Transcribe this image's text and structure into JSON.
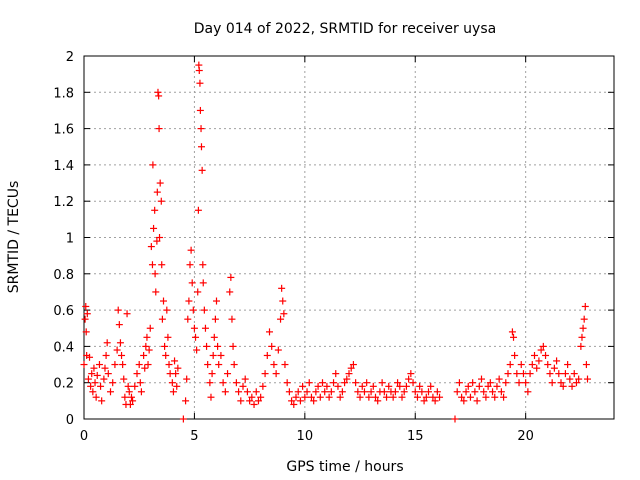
{
  "chart_data": {
    "type": "scatter",
    "title": "Day 014 of 2022, SRMTID for receiver uysa",
    "xlabel": "GPS time / hours",
    "ylabel": "SRMTID / TECUs",
    "xlim": [
      0,
      24
    ],
    "ylim": [
      0,
      2
    ],
    "xticks": [
      0,
      5,
      10,
      15,
      20
    ],
    "xtick_labels": [
      "0",
      "5",
      "10",
      "15",
      "20"
    ],
    "yticks": [
      0,
      0.2,
      0.4,
      0.6,
      0.8,
      1,
      1.2,
      1.4,
      1.6,
      1.8,
      2
    ],
    "ytick_labels": [
      "0",
      "0.2",
      "0.4",
      "0.6",
      "0.8",
      "1",
      "1.2",
      "1.4",
      "1.6",
      "1.8",
      "2"
    ],
    "grid": true,
    "marker": "+",
    "series": [
      {
        "name": "SRMTID",
        "color": "#ff0000",
        "points": [
          [
            0.0,
            0.3
          ],
          [
            0.05,
            0.55
          ],
          [
            0.08,
            0.62
          ],
          [
            0.1,
            0.48
          ],
          [
            0.12,
            0.35
          ],
          [
            0.15,
            0.58
          ],
          [
            0.2,
            0.22
          ],
          [
            0.25,
            0.34
          ],
          [
            0.3,
            0.18
          ],
          [
            0.35,
            0.25
          ],
          [
            0.4,
            0.15
          ],
          [
            0.45,
            0.28
          ],
          [
            0.5,
            0.2
          ],
          [
            0.55,
            0.12
          ],
          [
            0.6,
            0.24
          ],
          [
            0.7,
            0.3
          ],
          [
            0.75,
            0.18
          ],
          [
            0.8,
            0.1
          ],
          [
            0.9,
            0.22
          ],
          [
            0.95,
            0.28
          ],
          [
            1.0,
            0.35
          ],
          [
            1.05,
            0.42
          ],
          [
            1.1,
            0.25
          ],
          [
            1.2,
            0.15
          ],
          [
            1.3,
            0.2
          ],
          [
            1.4,
            0.3
          ],
          [
            1.5,
            0.38
          ],
          [
            1.55,
            0.6
          ],
          [
            1.6,
            0.52
          ],
          [
            1.65,
            0.42
          ],
          [
            1.7,
            0.35
          ],
          [
            1.75,
            0.3
          ],
          [
            1.8,
            0.22
          ],
          [
            1.85,
            0.12
          ],
          [
            1.9,
            0.08
          ],
          [
            1.95,
            0.58
          ],
          [
            2.0,
            0.18
          ],
          [
            2.05,
            0.15
          ],
          [
            2.1,
            0.08
          ],
          [
            2.15,
            0.12
          ],
          [
            2.2,
            0.1
          ],
          [
            2.3,
            0.18
          ],
          [
            2.4,
            0.25
          ],
          [
            2.5,
            0.3
          ],
          [
            2.55,
            0.2
          ],
          [
            2.6,
            0.15
          ],
          [
            2.7,
            0.35
          ],
          [
            2.75,
            0.28
          ],
          [
            2.8,
            0.4
          ],
          [
            2.85,
            0.45
          ],
          [
            2.9,
            0.3
          ],
          [
            2.95,
            0.38
          ],
          [
            3.0,
            0.5
          ],
          [
            3.05,
            0.95
          ],
          [
            3.1,
            0.85
          ],
          [
            3.12,
            1.4
          ],
          [
            3.15,
            1.05
          ],
          [
            3.2,
            1.15
          ],
          [
            3.22,
            0.8
          ],
          [
            3.25,
            0.7
          ],
          [
            3.3,
            0.98
          ],
          [
            3.32,
            1.25
          ],
          [
            3.35,
            1.8
          ],
          [
            3.38,
            1.78
          ],
          [
            3.4,
            1.6
          ],
          [
            3.42,
            1.0
          ],
          [
            3.45,
            1.3
          ],
          [
            3.5,
            1.2
          ],
          [
            3.52,
            0.85
          ],
          [
            3.55,
            0.55
          ],
          [
            3.6,
            0.65
          ],
          [
            3.65,
            0.4
          ],
          [
            3.7,
            0.35
          ],
          [
            3.75,
            0.6
          ],
          [
            3.8,
            0.45
          ],
          [
            3.85,
            0.3
          ],
          [
            3.9,
            0.25
          ],
          [
            4.0,
            0.2
          ],
          [
            4.05,
            0.15
          ],
          [
            4.1,
            0.32
          ],
          [
            4.15,
            0.25
          ],
          [
            4.2,
            0.18
          ],
          [
            4.25,
            0.28
          ],
          [
            4.5,
            0.0
          ],
          [
            4.6,
            0.1
          ],
          [
            4.65,
            0.22
          ],
          [
            4.7,
            0.55
          ],
          [
            4.75,
            0.65
          ],
          [
            4.8,
            0.85
          ],
          [
            4.85,
            0.93
          ],
          [
            4.9,
            0.75
          ],
          [
            4.95,
            0.6
          ],
          [
            5.0,
            0.5
          ],
          [
            5.05,
            0.45
          ],
          [
            5.1,
            0.38
          ],
          [
            5.15,
            0.7
          ],
          [
            5.18,
            1.15
          ],
          [
            5.2,
            1.95
          ],
          [
            5.22,
            1.92
          ],
          [
            5.25,
            1.85
          ],
          [
            5.27,
            1.7
          ],
          [
            5.3,
            1.6
          ],
          [
            5.32,
            1.5
          ],
          [
            5.35,
            1.37
          ],
          [
            5.38,
            0.85
          ],
          [
            5.4,
            0.75
          ],
          [
            5.45,
            0.6
          ],
          [
            5.5,
            0.5
          ],
          [
            5.55,
            0.4
          ],
          [
            5.6,
            0.3
          ],
          [
            5.7,
            0.2
          ],
          [
            5.75,
            0.12
          ],
          [
            5.8,
            0.25
          ],
          [
            5.85,
            0.35
          ],
          [
            5.9,
            0.45
          ],
          [
            5.95,
            0.55
          ],
          [
            6.0,
            0.65
          ],
          [
            6.05,
            0.4
          ],
          [
            6.1,
            0.3
          ],
          [
            6.2,
            0.35
          ],
          [
            6.3,
            0.2
          ],
          [
            6.4,
            0.15
          ],
          [
            6.5,
            0.25
          ],
          [
            6.6,
            0.7
          ],
          [
            6.65,
            0.78
          ],
          [
            6.7,
            0.55
          ],
          [
            6.75,
            0.4
          ],
          [
            6.8,
            0.3
          ],
          [
            6.9,
            0.2
          ],
          [
            7.0,
            0.15
          ],
          [
            7.1,
            0.1
          ],
          [
            7.2,
            0.18
          ],
          [
            7.3,
            0.22
          ],
          [
            7.4,
            0.15
          ],
          [
            7.5,
            0.1
          ],
          [
            7.6,
            0.12
          ],
          [
            7.7,
            0.08
          ],
          [
            7.8,
            0.15
          ],
          [
            7.9,
            0.1
          ],
          [
            8.0,
            0.12
          ],
          [
            8.1,
            0.18
          ],
          [
            8.2,
            0.25
          ],
          [
            8.3,
            0.35
          ],
          [
            8.4,
            0.48
          ],
          [
            8.5,
            0.4
          ],
          [
            8.6,
            0.3
          ],
          [
            8.7,
            0.25
          ],
          [
            8.8,
            0.38
          ],
          [
            8.9,
            0.55
          ],
          [
            8.95,
            0.72
          ],
          [
            9.0,
            0.65
          ],
          [
            9.05,
            0.58
          ],
          [
            9.1,
            0.3
          ],
          [
            9.2,
            0.2
          ],
          [
            9.3,
            0.15
          ],
          [
            9.4,
            0.1
          ],
          [
            9.5,
            0.08
          ],
          [
            9.6,
            0.12
          ],
          [
            9.7,
            0.15
          ],
          [
            9.8,
            0.1
          ],
          [
            9.9,
            0.18
          ],
          [
            10.0,
            0.12
          ],
          [
            10.1,
            0.15
          ],
          [
            10.2,
            0.2
          ],
          [
            10.3,
            0.12
          ],
          [
            10.4,
            0.1
          ],
          [
            10.5,
            0.15
          ],
          [
            10.6,
            0.18
          ],
          [
            10.7,
            0.12
          ],
          [
            10.8,
            0.2
          ],
          [
            10.9,
            0.15
          ],
          [
            11.0,
            0.18
          ],
          [
            11.1,
            0.12
          ],
          [
            11.2,
            0.15
          ],
          [
            11.3,
            0.2
          ],
          [
            11.4,
            0.25
          ],
          [
            11.5,
            0.18
          ],
          [
            11.6,
            0.12
          ],
          [
            11.7,
            0.15
          ],
          [
            11.8,
            0.2
          ],
          [
            11.9,
            0.22
          ],
          [
            12.0,
            0.25
          ],
          [
            12.1,
            0.28
          ],
          [
            12.2,
            0.3
          ],
          [
            12.3,
            0.2
          ],
          [
            12.4,
            0.15
          ],
          [
            12.5,
            0.12
          ],
          [
            12.6,
            0.18
          ],
          [
            12.7,
            0.15
          ],
          [
            12.8,
            0.2
          ],
          [
            12.9,
            0.12
          ],
          [
            13.0,
            0.15
          ],
          [
            13.1,
            0.18
          ],
          [
            13.2,
            0.12
          ],
          [
            13.3,
            0.1
          ],
          [
            13.4,
            0.15
          ],
          [
            13.5,
            0.2
          ],
          [
            13.6,
            0.15
          ],
          [
            13.7,
            0.12
          ],
          [
            13.8,
            0.18
          ],
          [
            13.9,
            0.15
          ],
          [
            14.0,
            0.12
          ],
          [
            14.1,
            0.15
          ],
          [
            14.2,
            0.2
          ],
          [
            14.3,
            0.18
          ],
          [
            14.4,
            0.12
          ],
          [
            14.5,
            0.15
          ],
          [
            14.6,
            0.18
          ],
          [
            14.7,
            0.22
          ],
          [
            14.8,
            0.25
          ],
          [
            14.9,
            0.2
          ],
          [
            15.0,
            0.15
          ],
          [
            15.1,
            0.12
          ],
          [
            15.2,
            0.18
          ],
          [
            15.3,
            0.15
          ],
          [
            15.4,
            0.1
          ],
          [
            15.5,
            0.12
          ],
          [
            15.6,
            0.15
          ],
          [
            15.7,
            0.18
          ],
          [
            15.8,
            0.12
          ],
          [
            15.9,
            0.1
          ],
          [
            16.0,
            0.15
          ],
          [
            16.1,
            0.12
          ],
          [
            16.8,
            0.0
          ],
          [
            16.9,
            0.15
          ],
          [
            17.0,
            0.2
          ],
          [
            17.1,
            0.12
          ],
          [
            17.2,
            0.1
          ],
          [
            17.3,
            0.15
          ],
          [
            17.4,
            0.18
          ],
          [
            17.5,
            0.12
          ],
          [
            17.6,
            0.2
          ],
          [
            17.7,
            0.15
          ],
          [
            17.8,
            0.1
          ],
          [
            17.9,
            0.18
          ],
          [
            18.0,
            0.22
          ],
          [
            18.1,
            0.15
          ],
          [
            18.2,
            0.12
          ],
          [
            18.3,
            0.18
          ],
          [
            18.4,
            0.2
          ],
          [
            18.5,
            0.15
          ],
          [
            18.6,
            0.12
          ],
          [
            18.7,
            0.18
          ],
          [
            18.8,
            0.22
          ],
          [
            18.9,
            0.15
          ],
          [
            19.0,
            0.12
          ],
          [
            19.1,
            0.2
          ],
          [
            19.2,
            0.25
          ],
          [
            19.3,
            0.3
          ],
          [
            19.4,
            0.48
          ],
          [
            19.45,
            0.45
          ],
          [
            19.5,
            0.35
          ],
          [
            19.6,
            0.25
          ],
          [
            19.7,
            0.2
          ],
          [
            19.8,
            0.3
          ],
          [
            19.9,
            0.25
          ],
          [
            20.0,
            0.2
          ],
          [
            20.1,
            0.15
          ],
          [
            20.2,
            0.25
          ],
          [
            20.3,
            0.3
          ],
          [
            20.4,
            0.35
          ],
          [
            20.5,
            0.28
          ],
          [
            20.6,
            0.32
          ],
          [
            20.7,
            0.38
          ],
          [
            20.8,
            0.4
          ],
          [
            20.9,
            0.35
          ],
          [
            21.0,
            0.3
          ],
          [
            21.1,
            0.25
          ],
          [
            21.2,
            0.2
          ],
          [
            21.3,
            0.28
          ],
          [
            21.4,
            0.32
          ],
          [
            21.5,
            0.25
          ],
          [
            21.6,
            0.2
          ],
          [
            21.7,
            0.18
          ],
          [
            21.8,
            0.25
          ],
          [
            21.9,
            0.3
          ],
          [
            22.0,
            0.22
          ],
          [
            22.1,
            0.18
          ],
          [
            22.2,
            0.25
          ],
          [
            22.3,
            0.2
          ],
          [
            22.4,
            0.22
          ],
          [
            22.5,
            0.4
          ],
          [
            22.55,
            0.45
          ],
          [
            22.6,
            0.5
          ],
          [
            22.65,
            0.55
          ],
          [
            22.7,
            0.62
          ],
          [
            22.75,
            0.3
          ],
          [
            22.8,
            0.22
          ]
        ]
      }
    ]
  }
}
